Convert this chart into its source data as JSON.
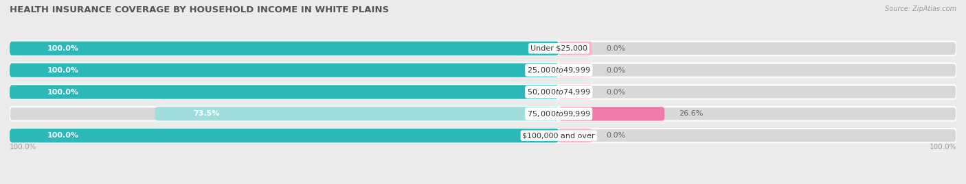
{
  "title": "HEALTH INSURANCE COVERAGE BY HOUSEHOLD INCOME IN WHITE PLAINS",
  "source": "Source: ZipAtlas.com",
  "categories": [
    "Under $25,000",
    "$25,000 to $49,999",
    "$50,000 to $74,999",
    "$75,000 to $99,999",
    "$100,000 and over"
  ],
  "with_coverage": [
    100.0,
    100.0,
    100.0,
    73.5,
    100.0
  ],
  "without_coverage": [
    0.0,
    0.0,
    0.0,
    26.6,
    0.0
  ],
  "without_display": [
    0.0,
    0.0,
    0.0,
    26.6,
    0.0
  ],
  "color_with": "#2ab8b8",
  "color_without": "#f07aaa",
  "color_with_light": "#a0dede",
  "color_without_light": "#f7b8ce",
  "bg_color": "#ebebeb",
  "bar_bg": "#d8d8d8",
  "title_fontsize": 9.5,
  "label_fontsize": 8,
  "tick_fontsize": 7.5,
  "legend_fontsize": 8,
  "source_fontsize": 7
}
